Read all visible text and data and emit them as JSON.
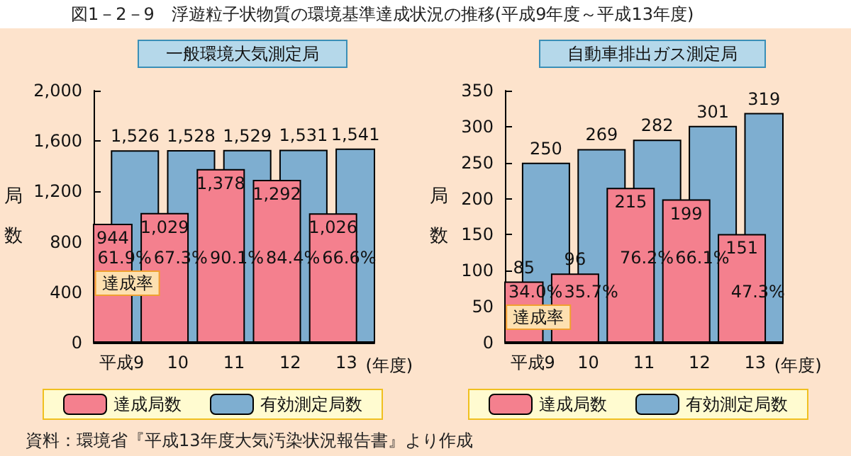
{
  "chart_data": [
    {
      "type": "bar",
      "title": "図1－2－9　浮遊粒子状物質の環境基準達成状況の推移(平成9年度～平成13年度)",
      "subtitle": "一般環境大気測定局",
      "xlabel": "(年度)",
      "ylabel": "局数",
      "categories": [
        "平成9",
        "10",
        "11",
        "12",
        "13"
      ],
      "series": [
        {
          "name": "達成局数",
          "color": "#f4808e",
          "values": [
            944,
            1029,
            1378,
            1292,
            1026
          ],
          "value_labels": [
            "944",
            "1,029",
            "1,378",
            "1,292",
            "1,026"
          ]
        },
        {
          "name": "有効測定局数",
          "color": "#7eaed0",
          "values": [
            1526,
            1528,
            1529,
            1531,
            1541
          ],
          "value_labels": [
            "1,526",
            "1,528",
            "1,529",
            "1,531",
            "1,541"
          ]
        }
      ],
      "ylim": [
        0,
        2000
      ],
      "yticks": [
        0,
        400,
        800,
        {
          "value": 1200,
          "label": "1,200"
        },
        {
          "value": 1600,
          "label": "1,600"
        },
        {
          "value": 2000,
          "label": "2,000"
        }
      ],
      "grid": false,
      "legend": "bottom",
      "annotations": [
        "61.9%",
        "67.3%",
        "90.1%",
        "84.4%",
        "66.6%",
        "達成率",
        "資料：環境省『平成13年度大気汚染状況報告書』より作成"
      ]
    },
    {
      "type": "bar",
      "subtitle": "自動車排出ガス測定局",
      "xlabel": "(年度)",
      "ylabel": "局数",
      "categories": [
        "平成9",
        "10",
        "11",
        "12",
        "13"
      ],
      "series": [
        {
          "name": "達成局数",
          "color": "#f4808e",
          "values": [
            85,
            96,
            215,
            199,
            151
          ]
        },
        {
          "name": "有効測定局数",
          "color": "#7eaed0",
          "values": [
            250,
            269,
            282,
            301,
            319
          ]
        }
      ],
      "ylim": [
        0,
        350
      ],
      "yticks": [
        0,
        50,
        100,
        150,
        200,
        250,
        300,
        350
      ],
      "grid": false,
      "legend": "bottom",
      "data_labels": true,
      "annotations": [
        "34.0%",
        "35.7%",
        "76.2%",
        "66.1%",
        "47.3%",
        "達成率"
      ]
    }
  ]
}
